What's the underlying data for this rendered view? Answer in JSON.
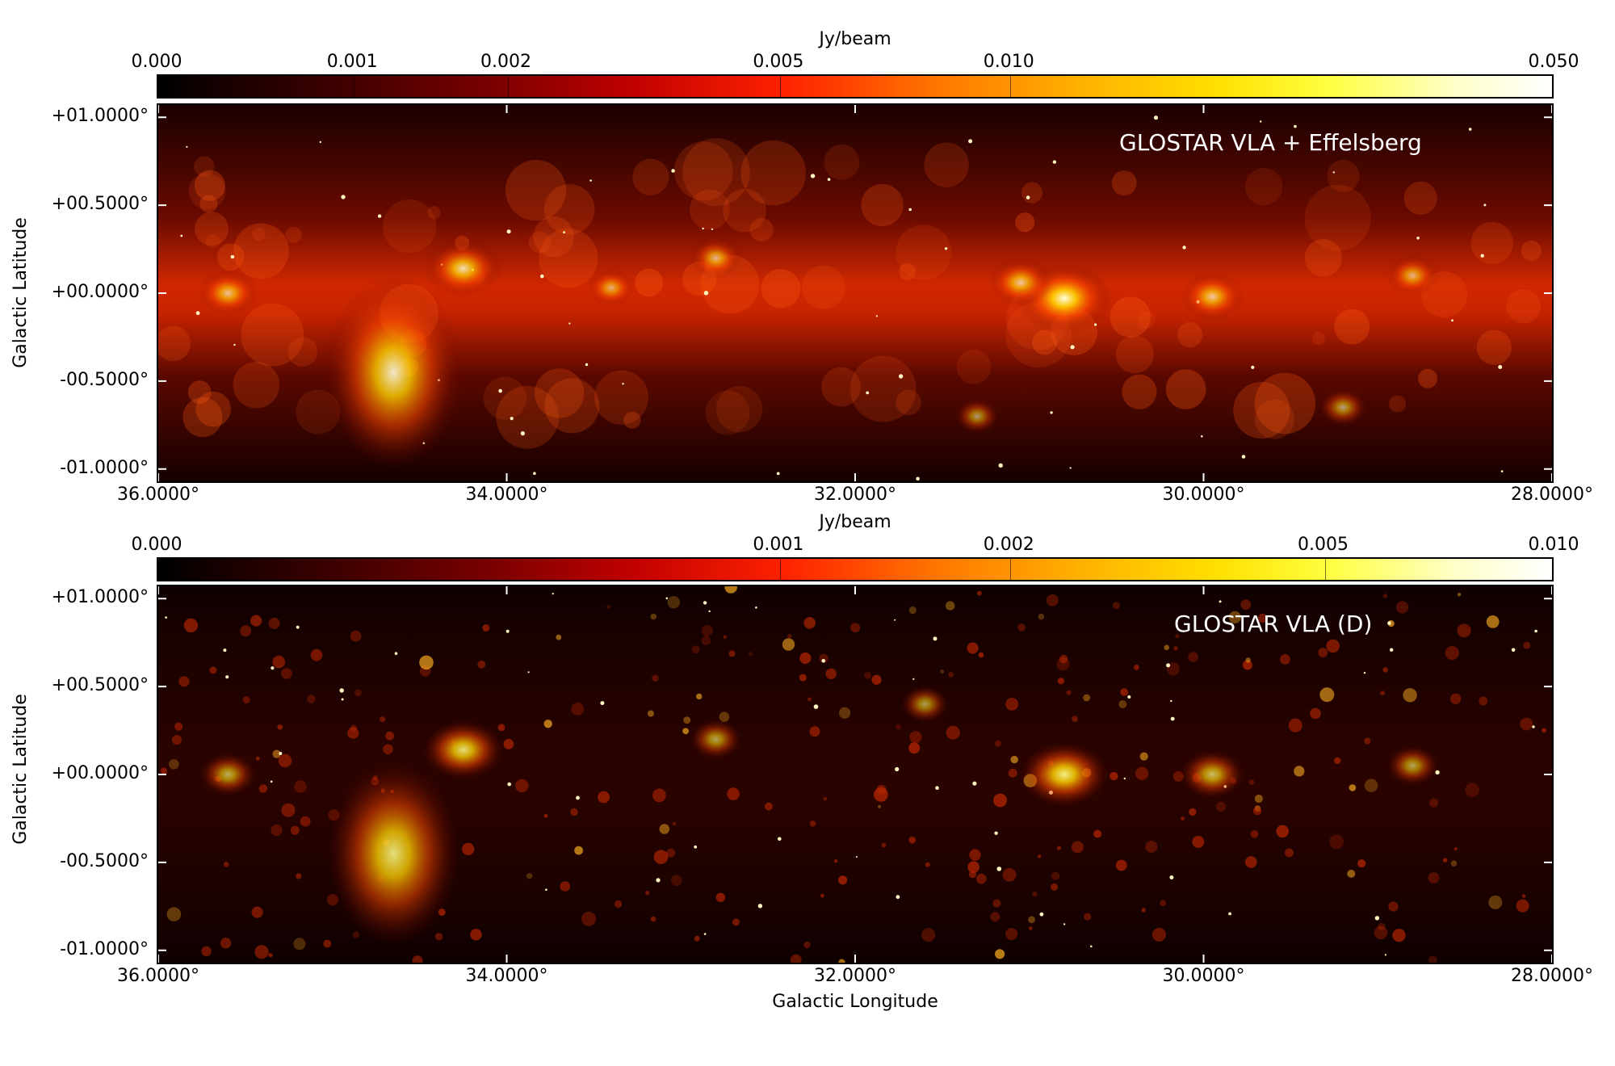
{
  "figure": {
    "x_axis_title": "Galactic Longitude",
    "y_axis_title": "Galactic Latitude"
  },
  "chart_data": [
    {
      "type": "heatmap",
      "panel_label": "GLOSTAR VLA + Effelsberg",
      "colorbar": {
        "title": "Jy/beam",
        "ticks": [
          "0.000",
          "0.001",
          "0.002",
          "0.005",
          "0.010",
          "0.050"
        ],
        "tick_values": [
          0.0,
          0.001,
          0.002,
          0.005,
          0.01,
          0.05
        ],
        "colormap": "afmhot",
        "scale": "nonlinear"
      },
      "x_ticks": [
        "36.0000°",
        "34.0000°",
        "32.0000°",
        "30.0000°",
        "28.0000°"
      ],
      "x_tick_values": [
        36,
        34,
        32,
        30,
        28
      ],
      "xlim": [
        36.0,
        28.0
      ],
      "y_ticks": [
        "+01.0000°",
        "+00.5000°",
        "+00.0000°",
        "-00.5000°",
        "-01.0000°"
      ],
      "y_tick_values": [
        1.0,
        0.5,
        0.0,
        -0.5,
        -1.0
      ],
      "ylim": [
        -1.07,
        1.07
      ],
      "sources": [
        {
          "l": 30.8,
          "b": -0.03,
          "amp": 1.0
        },
        {
          "l": 34.65,
          "b": -0.45,
          "amp": 0.85
        },
        {
          "l": 35.6,
          "b": 0.0,
          "amp": 0.55
        },
        {
          "l": 34.25,
          "b": 0.14,
          "amp": 0.75
        },
        {
          "l": 29.95,
          "b": -0.02,
          "amp": 0.6
        },
        {
          "l": 31.05,
          "b": 0.06,
          "amp": 0.6
        },
        {
          "l": 32.8,
          "b": 0.2,
          "amp": 0.45
        },
        {
          "l": 33.4,
          "b": 0.03,
          "amp": 0.4
        },
        {
          "l": 28.8,
          "b": 0.1,
          "amp": 0.45
        },
        {
          "l": 29.2,
          "b": -0.65,
          "amp": 0.4
        },
        {
          "l": 31.3,
          "b": -0.7,
          "amp": 0.35
        }
      ]
    },
    {
      "type": "heatmap",
      "panel_label": "GLOSTAR VLA (D)",
      "colorbar": {
        "title": "Jy/beam",
        "ticks": [
          "0.000",
          "0.001",
          "0.002",
          "0.005",
          "0.010"
        ],
        "tick_values": [
          0.0,
          0.001,
          0.002,
          0.005,
          0.01
        ],
        "colormap": "afmhot",
        "scale": "nonlinear"
      },
      "x_ticks": [
        "36.0000°",
        "34.0000°",
        "32.0000°",
        "30.0000°",
        "28.0000°"
      ],
      "x_tick_values": [
        36,
        34,
        32,
        30,
        28
      ],
      "xlim": [
        36.0,
        28.0
      ],
      "y_ticks": [
        "+01.0000°",
        "+00.5000°",
        "+00.0000°",
        "-00.5000°",
        "-01.0000°"
      ],
      "y_tick_values": [
        1.0,
        0.5,
        0.0,
        -0.5,
        -1.0
      ],
      "ylim": [
        -1.07,
        1.07
      ],
      "sources": [
        {
          "l": 30.8,
          "b": 0.0,
          "amp": 0.9
        },
        {
          "l": 34.65,
          "b": -0.45,
          "amp": 0.8
        },
        {
          "l": 34.25,
          "b": 0.14,
          "amp": 0.8
        },
        {
          "l": 35.6,
          "b": 0.0,
          "amp": 0.5
        },
        {
          "l": 29.95,
          "b": 0.0,
          "amp": 0.6
        },
        {
          "l": 32.8,
          "b": 0.2,
          "amp": 0.45
        },
        {
          "l": 31.6,
          "b": 0.4,
          "amp": 0.4
        },
        {
          "l": 28.8,
          "b": 0.05,
          "amp": 0.45
        }
      ]
    }
  ]
}
